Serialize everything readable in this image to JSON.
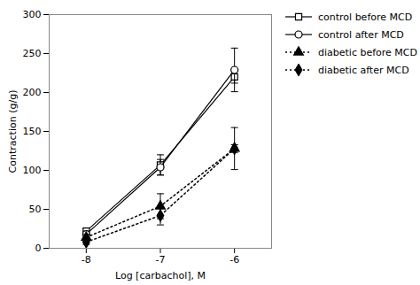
{
  "chart_data": {
    "type": "line",
    "xlabel": "Log [carbachol], M",
    "ylabel": "Contraction (g/g)",
    "x": [
      -8,
      -7,
      -6
    ],
    "xlim": [
      -8.5,
      -5.5
    ],
    "xticks": [
      -8,
      -7,
      -6
    ],
    "ylim": [
      0,
      300
    ],
    "yticks": [
      0,
      50,
      100,
      150,
      200,
      250,
      300
    ],
    "legend": "right",
    "series": [
      {
        "name": "control before MCD",
        "color": "#000000",
        "values": [
          22,
          107,
          220
        ],
        "yerr": [
          4,
          13,
          8
        ],
        "marker": "open_square",
        "line_style": "solid"
      },
      {
        "name": "control after MCD",
        "color": "#000000",
        "values": [
          18,
          104,
          229
        ],
        "yerr": [
          4,
          10,
          28
        ],
        "marker": "open_circle",
        "line_style": "solid"
      },
      {
        "name": "diabetic before MCD",
        "color": "#000000",
        "values": [
          14,
          54,
          128
        ],
        "yerr": [
          4,
          16,
          5
        ],
        "marker": "triangle",
        "line_style": "dotted"
      },
      {
        "name": "diabetic after MCD",
        "color": "#000000",
        "values": [
          8,
          42,
          128
        ],
        "yerr": [
          3,
          12,
          27
        ],
        "marker": "diamond",
        "line_style": "dotted"
      }
    ]
  }
}
